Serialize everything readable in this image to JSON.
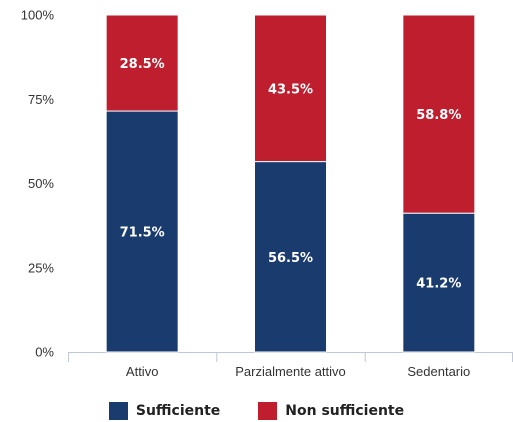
{
  "chart_data": {
    "type": "bar",
    "stacked": true,
    "categories": [
      "Attivo",
      "Parzialmente attivo",
      "Sedentario"
    ],
    "series": [
      {
        "name": "Sufficiente",
        "values": [
          71.5,
          56.5,
          41.2
        ],
        "labels": [
          "71.5%",
          "56.5%",
          "41.2%"
        ],
        "color": "#193b6e"
      },
      {
        "name": "Non sufficiente",
        "values": [
          28.5,
          43.5,
          58.8
        ],
        "labels": [
          "28.5%",
          "43.5%",
          "58.8%"
        ],
        "color": "#be1e2d"
      }
    ],
    "yticks": [
      "0%",
      "25%",
      "50%",
      "75%",
      "100%"
    ],
    "ylim": [
      0,
      100
    ],
    "grid": false,
    "legend_position": "bottom"
  }
}
